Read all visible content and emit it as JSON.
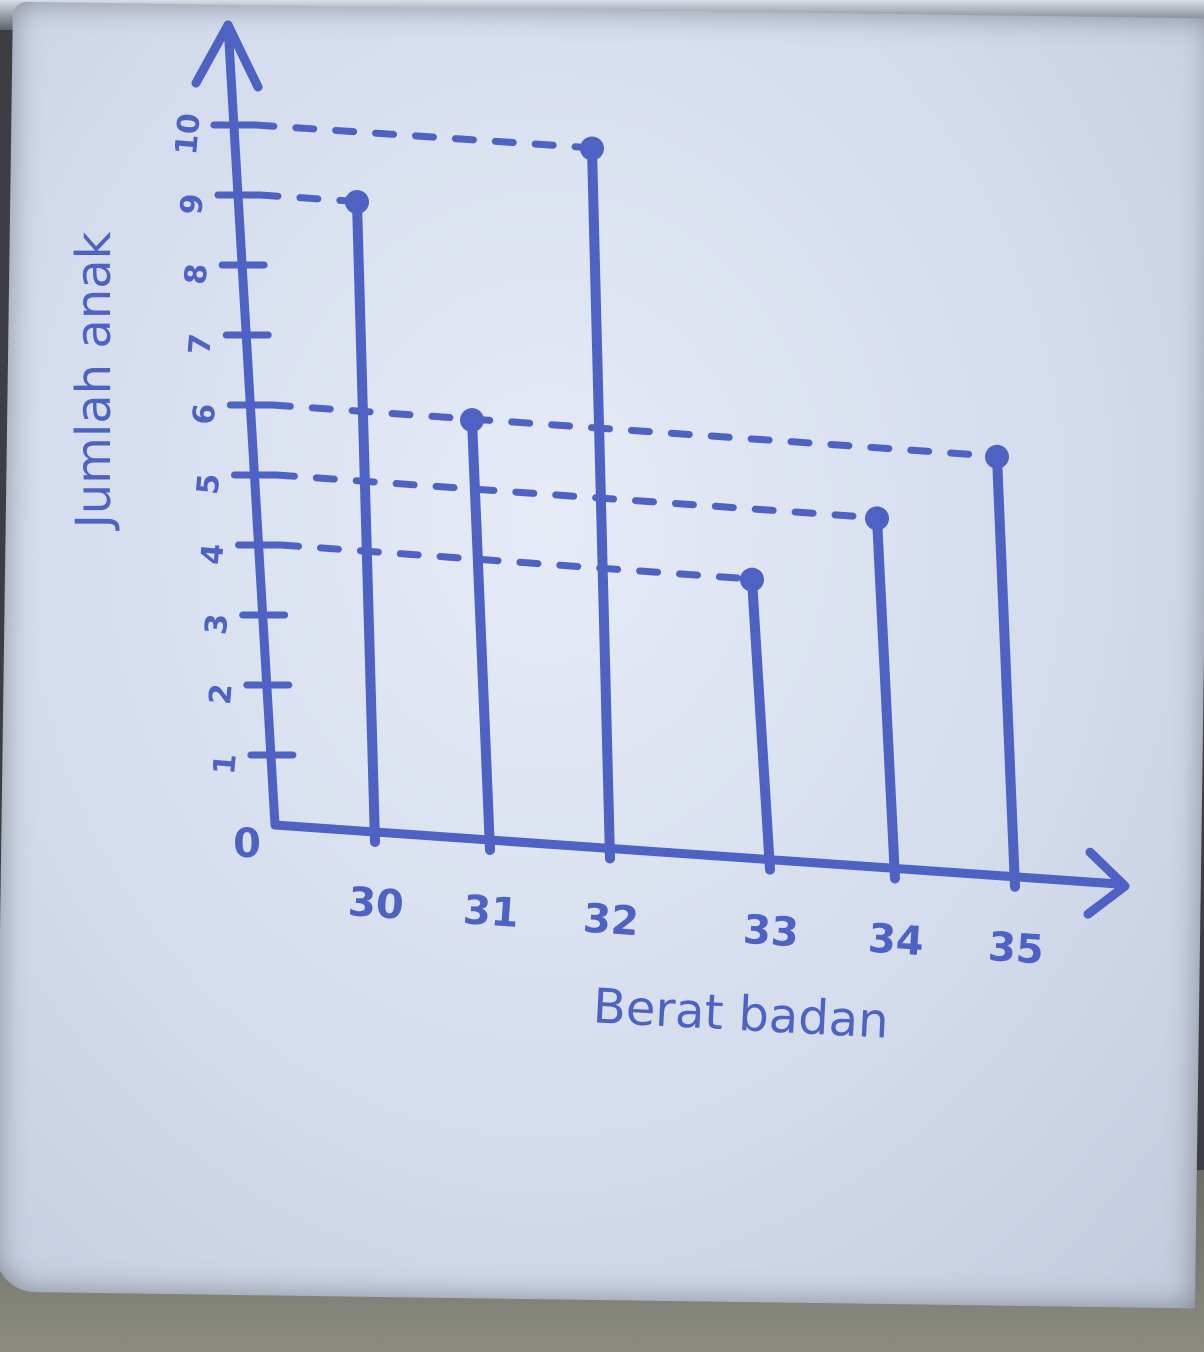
{
  "chart_data": {
    "type": "bar",
    "style": "hand-drawn stick chart with lollipop tops and dashed guide lines",
    "categories": [
      "30",
      "31",
      "32",
      "33",
      "34",
      "35"
    ],
    "values": [
      9,
      6,
      10,
      4,
      5,
      6
    ],
    "xlabel": "Berat badan",
    "ylabel": "Jumlah anak",
    "ylim": [
      0,
      10
    ],
    "yticks": [
      "0",
      "1",
      "2",
      "3",
      "4",
      "5",
      "6",
      "7",
      "8",
      "9",
      "10"
    ],
    "grid": false,
    "legend": "none",
    "ink_color": "#4d62c2",
    "paper_color": "#dde4f1"
  }
}
